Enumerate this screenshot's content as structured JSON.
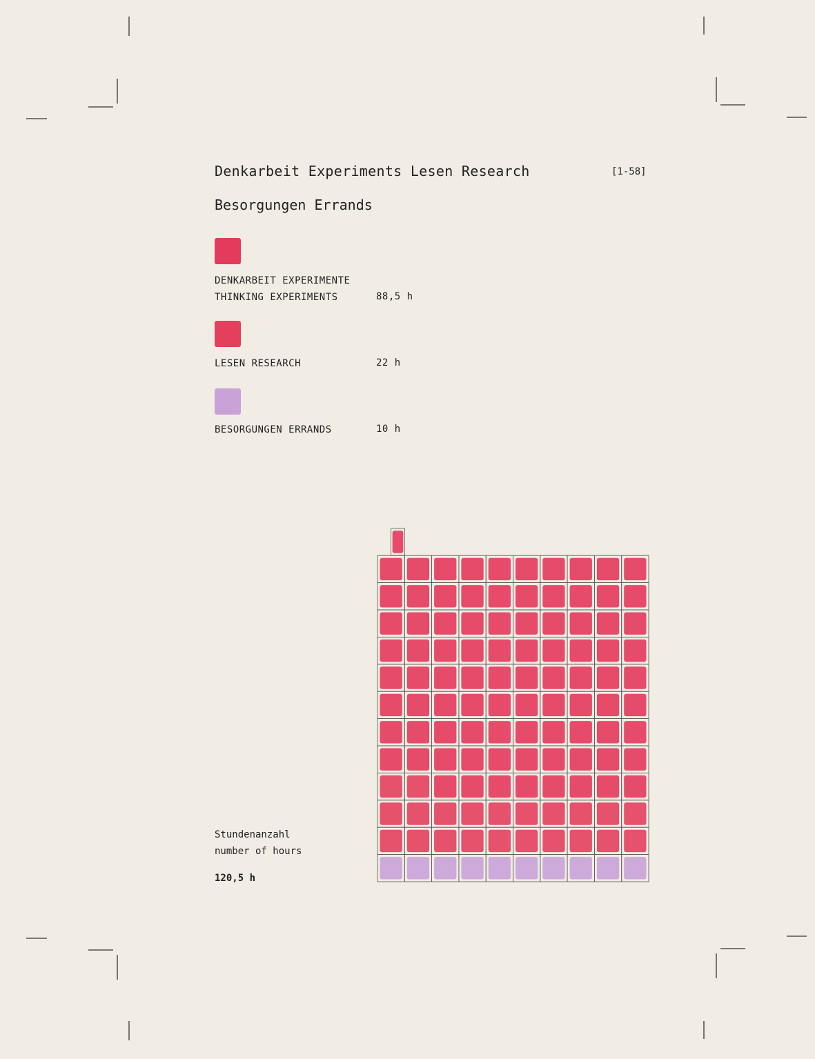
{
  "header": {
    "title": "Denkarbeit Experiments Lesen Research",
    "subtitle": "Besorgungen Errands",
    "range": "[1-58]"
  },
  "legend": [
    {
      "label_de": "DENKARBEIT EXPERIMENTE",
      "label_en": "THINKING EXPERIMENTS",
      "value": "88,5 h",
      "color": "#e43a5c"
    },
    {
      "label_de": "",
      "label_en": "LESEN RESEARCH",
      "value": "22 h",
      "color": "#e4405e"
    },
    {
      "label_de": "",
      "label_en": "BESORGUNGEN ERRANDS",
      "value": "10 h",
      "color": "#c9a3d8"
    }
  ],
  "summary": {
    "label_de": "Stundenanzahl",
    "label_en": "number of hours",
    "total": "120,5 h"
  },
  "chart_data": {
    "type": "waffle",
    "unit": "1 cell = 1 h",
    "columns": 10,
    "series": [
      {
        "name": "THINKING EXPERIMENTS",
        "value": 88.5,
        "color": "#e43a5c"
      },
      {
        "name": "LESEN RESEARCH",
        "value": 22,
        "color": "#e4405e"
      },
      {
        "name": "BESORGUNGEN ERRANDS",
        "value": 10,
        "color": "#c9a3d8"
      }
    ],
    "total": 120.5
  }
}
